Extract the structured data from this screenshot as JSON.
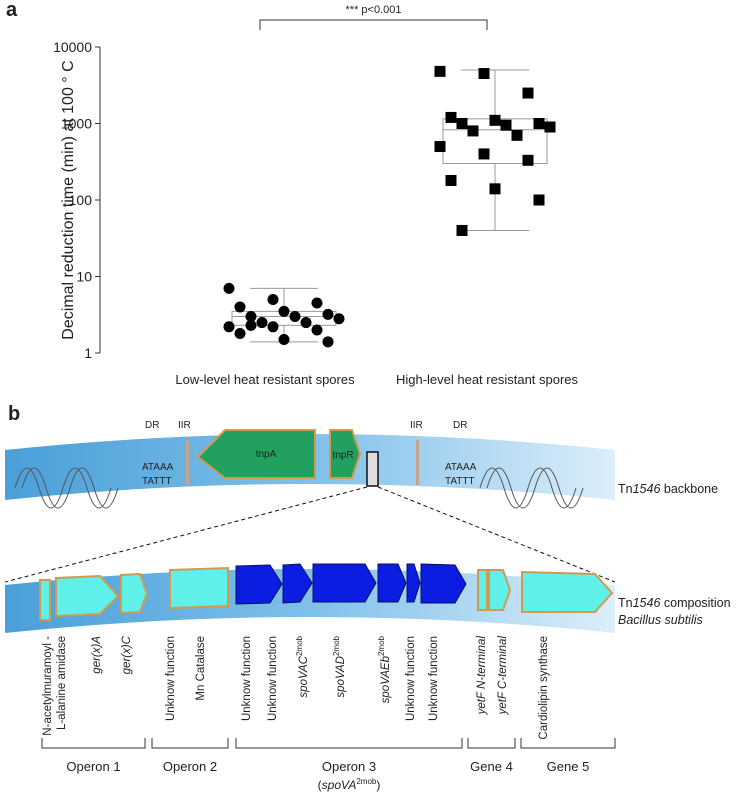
{
  "chart_data": {
    "type": "box",
    "panel_label": "a",
    "annotation": "*** p<0.001",
    "ylabel": "Decimal reduction time (min) at 100 ° C",
    "log_scale": true,
    "ylim": [
      1,
      10000
    ],
    "yticks": [
      1,
      10,
      100,
      1000,
      10000
    ],
    "categories": [
      "Low-level heat resistant spores",
      "High-level heat resistant spores"
    ],
    "groups": [
      {
        "marker": "circle",
        "color": "#000000",
        "box": {
          "whisker_low": 1.4,
          "q1": 2.3,
          "median": 3,
          "q3": 3.5,
          "whisker_high": 7
        },
        "values": [
          7,
          5,
          4.5,
          4,
          3.5,
          3.2,
          3,
          3,
          2.8,
          2.5,
          2.5,
          2.2,
          2.2,
          2,
          1.8,
          1.5,
          1.4,
          2.3
        ]
      },
      {
        "marker": "square",
        "color": "#000000",
        "box": {
          "whisker_low": 40,
          "q1": 300,
          "median": 830,
          "q3": 1150,
          "whisker_high": 5000
        },
        "values": [
          4800,
          4500,
          2500,
          1200,
          1100,
          1000,
          1000,
          950,
          900,
          800,
          700,
          500,
          400,
          330,
          180,
          140,
          100,
          40
        ]
      }
    ]
  },
  "diagram": {
    "panel_label": "b",
    "backbone": {
      "left_dr": "DR",
      "left_iir": "IIR",
      "left_seq": [
        "ATAAA",
        "TATTT"
      ],
      "tnpA": "tnpA",
      "tnpR": "tnpR",
      "right_iir": "IIR",
      "right_dr": "DR",
      "right_seq": [
        "ATAAA",
        "TATTT"
      ],
      "label": {
        "prefix": "Tn",
        "italic": "1546",
        "suffix": " backbone"
      }
    },
    "composition": {
      "label": {
        "prefix": "Tn",
        "italic": "1546",
        "suffix": " composition"
      },
      "organism": "Bacillus subtilis"
    },
    "genes": [
      {
        "text": "N-acetylmuramoyl -"
      },
      {
        "text": "L-alanine amidase"
      },
      {
        "text": "ger(x)A"
      },
      {
        "text": "ger(x)C"
      },
      {
        "text": "Unknow function"
      },
      {
        "text": "Mn Catalase"
      },
      {
        "text": "Unknow function"
      },
      {
        "text": "Unknow function"
      },
      {
        "text": "spoVAC",
        "sup": "2mob"
      },
      {
        "text": "spoVAD",
        "sup": "2mob"
      },
      {
        "text": "spoVAEb",
        "sup": "2mob"
      },
      {
        "text": "Unknow function"
      },
      {
        "text": "Unknow function"
      },
      {
        "text": "yetF N-terminal"
      },
      {
        "text": "yetF C-terminal"
      },
      {
        "text": "Cardiolipin synthase"
      }
    ],
    "groups": [
      {
        "label": "Operon 1"
      },
      {
        "label": "Operon 2"
      },
      {
        "label": "Operon 3",
        "sub": {
          "open": "(",
          "italic": "spoVA",
          "sup": "2mob",
          "close": ")"
        }
      },
      {
        "label": "Gene 4"
      },
      {
        "label": "Gene 5"
      }
    ]
  }
}
